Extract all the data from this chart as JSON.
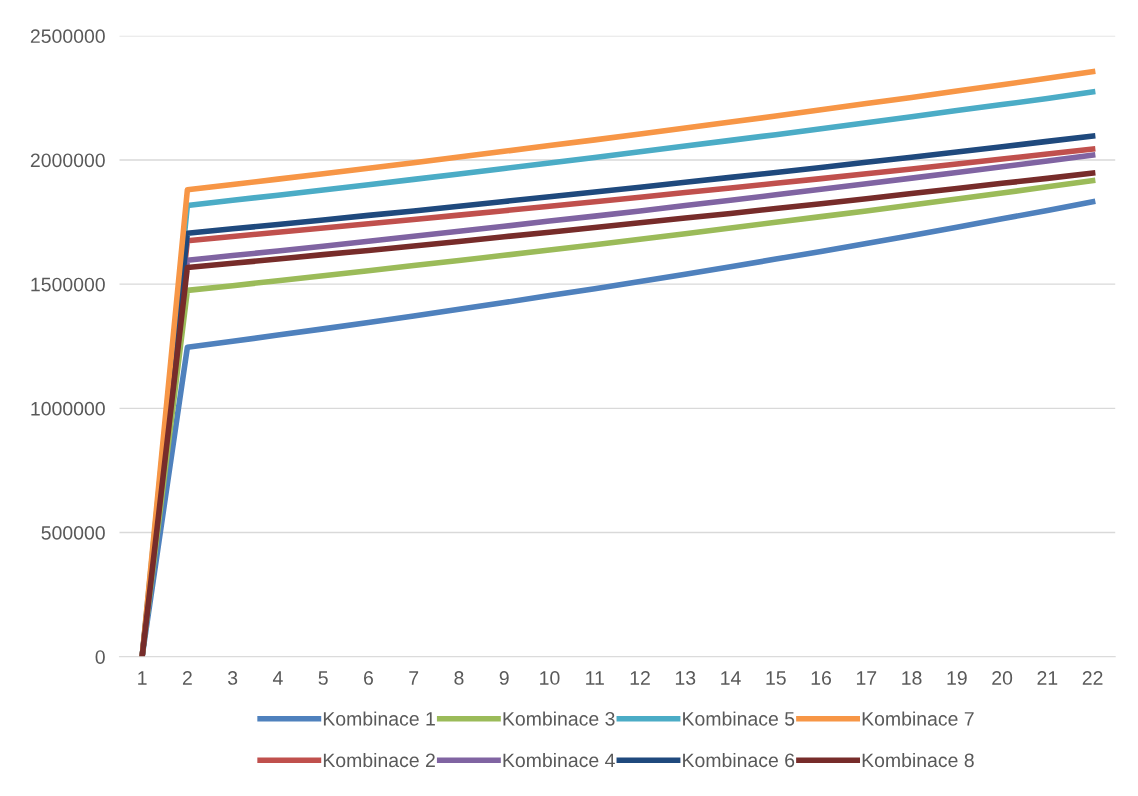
{
  "chart_data": {
    "type": "line",
    "categories": [
      "1",
      "2",
      "3",
      "4",
      "5",
      "6",
      "7",
      "8",
      "9",
      "10",
      "11",
      "12",
      "13",
      "14",
      "15",
      "16",
      "17",
      "18",
      "19",
      "20",
      "21",
      "22"
    ],
    "ylim": [
      0,
      2500000
    ],
    "yticks": [
      0,
      500000,
      1000000,
      1500000,
      2000000,
      2500000
    ],
    "grid": "y",
    "legend": "bottom",
    "marker": "none",
    "line_style": "solid",
    "series": [
      {
        "name": "Kombinace 1",
        "color": "#4f81bd",
        "values": [
          0,
          1246000,
          1270000,
          1295000,
          1320000,
          1346000,
          1372000,
          1399000,
          1426000,
          1454000,
          1482000,
          1511000,
          1540000,
          1570000,
          1601000,
          1632000,
          1664000,
          1696000,
          1729000,
          1763000,
          1797000,
          1832000
        ]
      },
      {
        "name": "Kombinace 2",
        "color": "#c0504d",
        "values": [
          0,
          1675000,
          1692000,
          1709000,
          1726000,
          1743000,
          1760000,
          1778000,
          1796000,
          1814000,
          1832000,
          1850000,
          1869000,
          1887000,
          1906000,
          1925000,
          1945000,
          1964000,
          1984000,
          2004000,
          2024000,
          2044000
        ]
      },
      {
        "name": "Kombinace 3",
        "color": "#9bbb59",
        "values": [
          0,
          1475000,
          1494000,
          1514000,
          1534000,
          1554000,
          1575000,
          1595000,
          1616000,
          1638000,
          1659000,
          1681000,
          1703000,
          1726000,
          1749000,
          1772000,
          1795000,
          1819000,
          1843000,
          1867000,
          1892000,
          1917000
        ]
      },
      {
        "name": "Kombinace 4",
        "color": "#8064a2",
        "values": [
          0,
          1596000,
          1615000,
          1634000,
          1653000,
          1673000,
          1693000,
          1713000,
          1733000,
          1754000,
          1774000,
          1795000,
          1817000,
          1838000,
          1860000,
          1882000,
          1904000,
          1927000,
          1950000,
          1973000,
          1996000,
          2020000
        ]
      },
      {
        "name": "Kombinace 5",
        "color": "#4bacc6",
        "values": [
          0,
          1817000,
          1838000,
          1858000,
          1879000,
          1900000,
          1922000,
          1944000,
          1966000,
          1988000,
          2010000,
          2033000,
          2056000,
          2079000,
          2102000,
          2126000,
          2150000,
          2174000,
          2199000,
          2223000,
          2248000,
          2274000
        ]
      },
      {
        "name": "Kombinace 6",
        "color": "#1f497d",
        "values": [
          0,
          1705000,
          1723000,
          1740000,
          1758000,
          1777000,
          1795000,
          1814000,
          1833000,
          1852000,
          1871000,
          1890000,
          1910000,
          1930000,
          1950000,
          1970000,
          1991000,
          2011000,
          2032000,
          2053000,
          2075000,
          2096000
        ]
      },
      {
        "name": "Kombinace 7",
        "color": "#f79646",
        "values": [
          0,
          1880000,
          1901000,
          1923000,
          1945000,
          1967000,
          1989000,
          2012000,
          2035000,
          2058000,
          2081000,
          2105000,
          2129000,
          2153000,
          2177000,
          2202000,
          2227000,
          2252000,
          2278000,
          2303000,
          2329000,
          2356000
        ]
      },
      {
        "name": "Kombinace 8",
        "color": "#772c2a",
        "values": [
          0,
          1567000,
          1584000,
          1601000,
          1619000,
          1636000,
          1654000,
          1672000,
          1691000,
          1709000,
          1728000,
          1747000,
          1766000,
          1785000,
          1805000,
          1824000,
          1844000,
          1865000,
          1885000,
          1906000,
          1926000,
          1947000
        ]
      }
    ]
  }
}
